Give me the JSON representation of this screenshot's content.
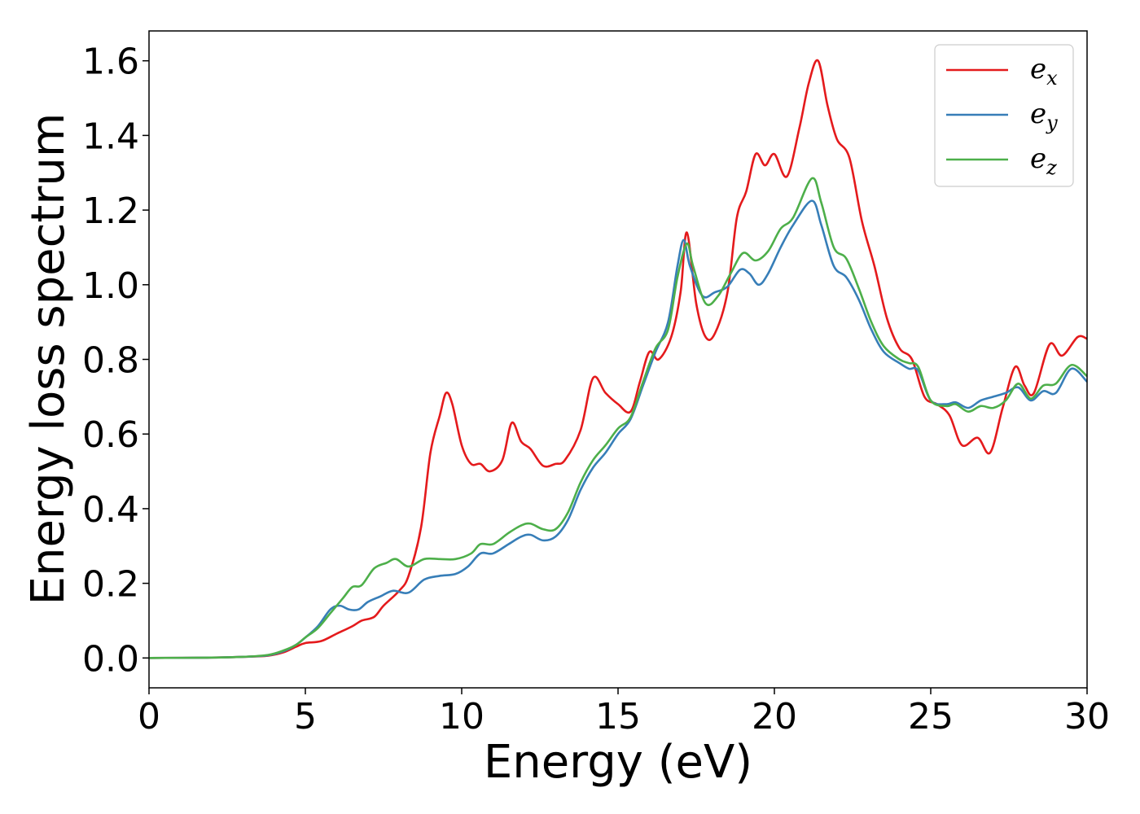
{
  "chart_data": {
    "type": "line",
    "title": "",
    "xlabel": "Energy (eV)",
    "ylabel": "Energy loss spectrum",
    "xlim": [
      0,
      30
    ],
    "ylim": [
      -0.08,
      1.68
    ],
    "xticks": [
      "0",
      "5",
      "10",
      "15",
      "20",
      "25",
      "30"
    ],
    "yticks": [
      "0.0",
      "0.2",
      "0.4",
      "0.6",
      "0.8",
      "1.0",
      "1.2",
      "1.4",
      "1.6"
    ],
    "grid": false,
    "legend_position": "top-right",
    "series": [
      {
        "name": "e",
        "subscript": "x",
        "color": "#e41a1c",
        "points": [
          [
            0,
            0.0
          ],
          [
            2,
            0.001
          ],
          [
            3,
            0.003
          ],
          [
            3.8,
            0.006
          ],
          [
            4.3,
            0.015
          ],
          [
            4.7,
            0.03
          ],
          [
            5.0,
            0.04
          ],
          [
            5.5,
            0.045
          ],
          [
            6.0,
            0.065
          ],
          [
            6.5,
            0.085
          ],
          [
            6.8,
            0.1
          ],
          [
            7.2,
            0.11
          ],
          [
            7.5,
            0.14
          ],
          [
            8.0,
            0.18
          ],
          [
            8.3,
            0.22
          ],
          [
            8.7,
            0.35
          ],
          [
            9.0,
            0.55
          ],
          [
            9.3,
            0.65
          ],
          [
            9.5,
            0.71
          ],
          [
            9.7,
            0.68
          ],
          [
            10.0,
            0.57
          ],
          [
            10.3,
            0.52
          ],
          [
            10.6,
            0.52
          ],
          [
            10.9,
            0.5
          ],
          [
            11.3,
            0.53
          ],
          [
            11.6,
            0.63
          ],
          [
            11.9,
            0.58
          ],
          [
            12.2,
            0.56
          ],
          [
            12.6,
            0.515
          ],
          [
            13.0,
            0.52
          ],
          [
            13.3,
            0.53
          ],
          [
            13.8,
            0.61
          ],
          [
            14.2,
            0.75
          ],
          [
            14.6,
            0.71
          ],
          [
            15.0,
            0.68
          ],
          [
            15.4,
            0.66
          ],
          [
            15.7,
            0.74
          ],
          [
            16.0,
            0.82
          ],
          [
            16.3,
            0.8
          ],
          [
            16.7,
            0.86
          ],
          [
            17.0,
            0.98
          ],
          [
            17.2,
            1.14
          ],
          [
            17.5,
            0.95
          ],
          [
            17.8,
            0.86
          ],
          [
            18.1,
            0.87
          ],
          [
            18.5,
            0.98
          ],
          [
            18.8,
            1.18
          ],
          [
            19.1,
            1.25
          ],
          [
            19.4,
            1.35
          ],
          [
            19.7,
            1.32
          ],
          [
            20.0,
            1.35
          ],
          [
            20.4,
            1.29
          ],
          [
            20.8,
            1.42
          ],
          [
            21.1,
            1.54
          ],
          [
            21.4,
            1.6
          ],
          [
            21.7,
            1.48
          ],
          [
            22.0,
            1.39
          ],
          [
            22.4,
            1.34
          ],
          [
            22.8,
            1.17
          ],
          [
            23.2,
            1.05
          ],
          [
            23.6,
            0.91
          ],
          [
            24.0,
            0.83
          ],
          [
            24.4,
            0.8
          ],
          [
            24.8,
            0.7
          ],
          [
            25.2,
            0.68
          ],
          [
            25.6,
            0.65
          ],
          [
            26.0,
            0.57
          ],
          [
            26.5,
            0.59
          ],
          [
            26.9,
            0.55
          ],
          [
            27.3,
            0.67
          ],
          [
            27.7,
            0.78
          ],
          [
            28.0,
            0.73
          ],
          [
            28.3,
            0.71
          ],
          [
            28.8,
            0.84
          ],
          [
            29.2,
            0.81
          ],
          [
            29.7,
            0.86
          ],
          [
            30.0,
            0.855
          ]
        ]
      },
      {
        "name": "e",
        "subscript": "y",
        "color": "#377eb8",
        "points": [
          [
            0,
            0.0
          ],
          [
            2,
            0.001
          ],
          [
            3,
            0.003
          ],
          [
            3.8,
            0.007
          ],
          [
            4.3,
            0.018
          ],
          [
            4.7,
            0.035
          ],
          [
            5.0,
            0.055
          ],
          [
            5.4,
            0.085
          ],
          [
            5.8,
            0.13
          ],
          [
            6.1,
            0.14
          ],
          [
            6.4,
            0.13
          ],
          [
            6.7,
            0.13
          ],
          [
            7.0,
            0.15
          ],
          [
            7.4,
            0.165
          ],
          [
            7.8,
            0.18
          ],
          [
            8.3,
            0.175
          ],
          [
            8.8,
            0.21
          ],
          [
            9.3,
            0.22
          ],
          [
            9.8,
            0.225
          ],
          [
            10.2,
            0.245
          ],
          [
            10.6,
            0.28
          ],
          [
            11.0,
            0.28
          ],
          [
            11.5,
            0.305
          ],
          [
            11.9,
            0.325
          ],
          [
            12.2,
            0.33
          ],
          [
            12.6,
            0.315
          ],
          [
            13.0,
            0.325
          ],
          [
            13.4,
            0.37
          ],
          [
            13.8,
            0.45
          ],
          [
            14.2,
            0.51
          ],
          [
            14.6,
            0.55
          ],
          [
            15.0,
            0.6
          ],
          [
            15.4,
            0.64
          ],
          [
            15.8,
            0.73
          ],
          [
            16.2,
            0.82
          ],
          [
            16.6,
            0.9
          ],
          [
            16.9,
            1.05
          ],
          [
            17.1,
            1.12
          ],
          [
            17.3,
            1.05
          ],
          [
            17.7,
            0.97
          ],
          [
            18.1,
            0.98
          ],
          [
            18.5,
            0.995
          ],
          [
            18.9,
            1.04
          ],
          [
            19.2,
            1.03
          ],
          [
            19.5,
            1.0
          ],
          [
            19.8,
            1.03
          ],
          [
            20.2,
            1.1
          ],
          [
            20.6,
            1.16
          ],
          [
            21.2,
            1.225
          ],
          [
            21.5,
            1.16
          ],
          [
            21.9,
            1.05
          ],
          [
            22.3,
            1.02
          ],
          [
            22.7,
            0.96
          ],
          [
            23.1,
            0.88
          ],
          [
            23.5,
            0.82
          ],
          [
            24.0,
            0.79
          ],
          [
            24.3,
            0.775
          ],
          [
            24.6,
            0.77
          ],
          [
            25.0,
            0.69
          ],
          [
            25.5,
            0.68
          ],
          [
            25.8,
            0.685
          ],
          [
            26.2,
            0.67
          ],
          [
            26.6,
            0.69
          ],
          [
            27.0,
            0.7
          ],
          [
            27.4,
            0.71
          ],
          [
            27.8,
            0.725
          ],
          [
            28.2,
            0.69
          ],
          [
            28.6,
            0.715
          ],
          [
            29.0,
            0.71
          ],
          [
            29.5,
            0.775
          ],
          [
            30.0,
            0.74
          ]
        ]
      },
      {
        "name": "e",
        "subscript": "z",
        "color": "#4daf4a",
        "points": [
          [
            0,
            0.0
          ],
          [
            2,
            0.001
          ],
          [
            3,
            0.003
          ],
          [
            3.8,
            0.008
          ],
          [
            4.3,
            0.02
          ],
          [
            4.7,
            0.035
          ],
          [
            5.0,
            0.055
          ],
          [
            5.4,
            0.08
          ],
          [
            5.8,
            0.12
          ],
          [
            6.2,
            0.16
          ],
          [
            6.5,
            0.19
          ],
          [
            6.8,
            0.195
          ],
          [
            7.2,
            0.24
          ],
          [
            7.6,
            0.255
          ],
          [
            7.9,
            0.265
          ],
          [
            8.3,
            0.245
          ],
          [
            8.8,
            0.265
          ],
          [
            9.3,
            0.265
          ],
          [
            9.8,
            0.265
          ],
          [
            10.3,
            0.28
          ],
          [
            10.6,
            0.305
          ],
          [
            11.0,
            0.305
          ],
          [
            11.5,
            0.335
          ],
          [
            11.9,
            0.355
          ],
          [
            12.2,
            0.36
          ],
          [
            12.6,
            0.345
          ],
          [
            13.0,
            0.345
          ],
          [
            13.4,
            0.39
          ],
          [
            13.8,
            0.47
          ],
          [
            14.2,
            0.53
          ],
          [
            14.6,
            0.57
          ],
          [
            15.0,
            0.615
          ],
          [
            15.4,
            0.645
          ],
          [
            15.8,
            0.74
          ],
          [
            16.2,
            0.83
          ],
          [
            16.6,
            0.88
          ],
          [
            16.9,
            1.02
          ],
          [
            17.2,
            1.11
          ],
          [
            17.4,
            1.05
          ],
          [
            17.8,
            0.95
          ],
          [
            18.2,
            0.97
          ],
          [
            18.6,
            1.03
          ],
          [
            19.0,
            1.085
          ],
          [
            19.4,
            1.065
          ],
          [
            19.8,
            1.09
          ],
          [
            20.2,
            1.15
          ],
          [
            20.6,
            1.18
          ],
          [
            21.2,
            1.285
          ],
          [
            21.5,
            1.22
          ],
          [
            21.9,
            1.1
          ],
          [
            22.3,
            1.07
          ],
          [
            22.7,
            0.99
          ],
          [
            23.1,
            0.9
          ],
          [
            23.5,
            0.835
          ],
          [
            24.0,
            0.8
          ],
          [
            24.3,
            0.79
          ],
          [
            24.6,
            0.78
          ],
          [
            25.0,
            0.69
          ],
          [
            25.5,
            0.675
          ],
          [
            25.8,
            0.68
          ],
          [
            26.2,
            0.66
          ],
          [
            26.6,
            0.675
          ],
          [
            27.0,
            0.67
          ],
          [
            27.4,
            0.69
          ],
          [
            27.8,
            0.735
          ],
          [
            28.2,
            0.695
          ],
          [
            28.6,
            0.73
          ],
          [
            29.0,
            0.735
          ],
          [
            29.5,
            0.785
          ],
          [
            30.0,
            0.755
          ]
        ]
      }
    ]
  }
}
